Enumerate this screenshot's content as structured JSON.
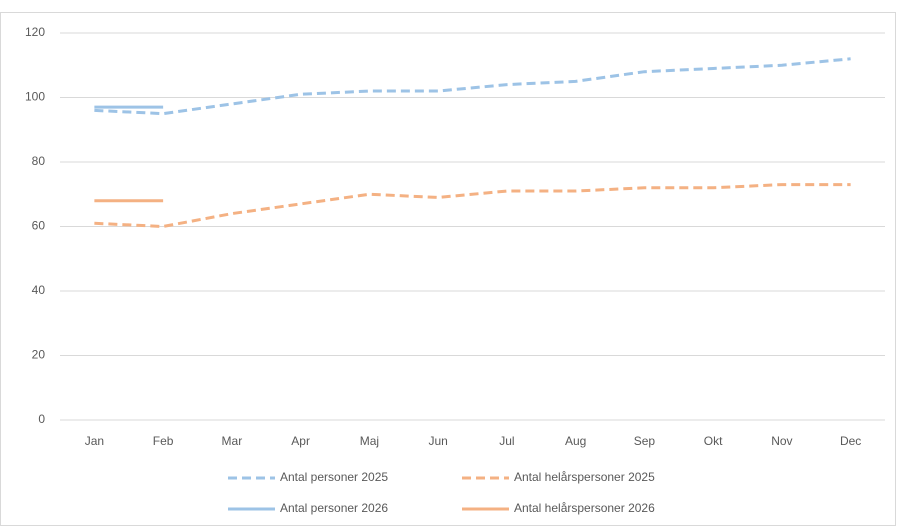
{
  "chart_data": {
    "type": "line",
    "categories": [
      "Jan",
      "Feb",
      "Mar",
      "Apr",
      "Maj",
      "Jun",
      "Jul",
      "Aug",
      "Sep",
      "Okt",
      "Nov",
      "Dec"
    ],
    "series": [
      {
        "name": "Antal personer 2025",
        "color": "#9dc3e6",
        "style": "dashed",
        "values": [
          96,
          95,
          98,
          101,
          102,
          102,
          104,
          105,
          108,
          109,
          110,
          112
        ]
      },
      {
        "name": "Antal helårspersoner 2025",
        "color": "#f4b183",
        "style": "dashed",
        "values": [
          61,
          60,
          64,
          67,
          70,
          69,
          71,
          71,
          72,
          72,
          73,
          73
        ]
      },
      {
        "name": "Antal personer 2026",
        "color": "#9dc3e6",
        "style": "solid",
        "values": [
          97,
          97,
          null,
          null,
          null,
          null,
          null,
          null,
          null,
          null,
          null,
          null
        ]
      },
      {
        "name": "Antal helårspersoner 2026",
        "color": "#f4b183",
        "style": "solid",
        "values": [
          68,
          68,
          null,
          null,
          null,
          null,
          null,
          null,
          null,
          null,
          null,
          null
        ]
      }
    ],
    "ylim": [
      0,
      120
    ],
    "yticks": [
      0,
      20,
      40,
      60,
      80,
      100,
      120
    ],
    "grid": true,
    "legend": "bottom"
  }
}
